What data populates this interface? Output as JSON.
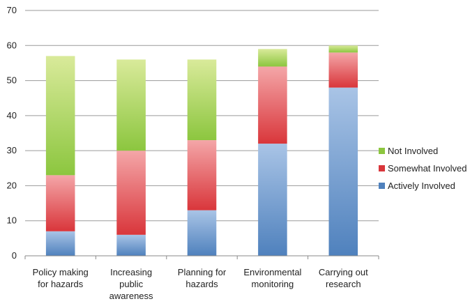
{
  "chart_data": {
    "type": "bar",
    "stacked": true,
    "title": "",
    "xlabel": "",
    "ylabel": "",
    "ylim": [
      0,
      70
    ],
    "yticks": [
      0,
      10,
      20,
      30,
      40,
      50,
      60,
      70
    ],
    "grid": true,
    "legend_position": "right",
    "categories": [
      [
        "Policy making",
        "for hazards"
      ],
      [
        "Increasing",
        "public",
        "awareness"
      ],
      [
        "Planning for",
        "hazards"
      ],
      [
        "Environmental",
        "monitoring"
      ],
      [
        "Carrying out",
        "research"
      ]
    ],
    "series": [
      {
        "name": "Actively Involved",
        "values": [
          7,
          6,
          13,
          32,
          48
        ],
        "color": "#4f81bd",
        "light": "#a9c4e6"
      },
      {
        "name": "Somewhat Involved",
        "values": [
          16,
          24,
          20,
          22,
          10
        ],
        "color": "#d9363b",
        "light": "#f4a6a8"
      },
      {
        "name": "Not Involved",
        "values": [
          34,
          26,
          23,
          5,
          2
        ],
        "color": "#8cc63f",
        "light": "#d9ea9a"
      }
    ],
    "legend_order": [
      2,
      1,
      0
    ]
  }
}
